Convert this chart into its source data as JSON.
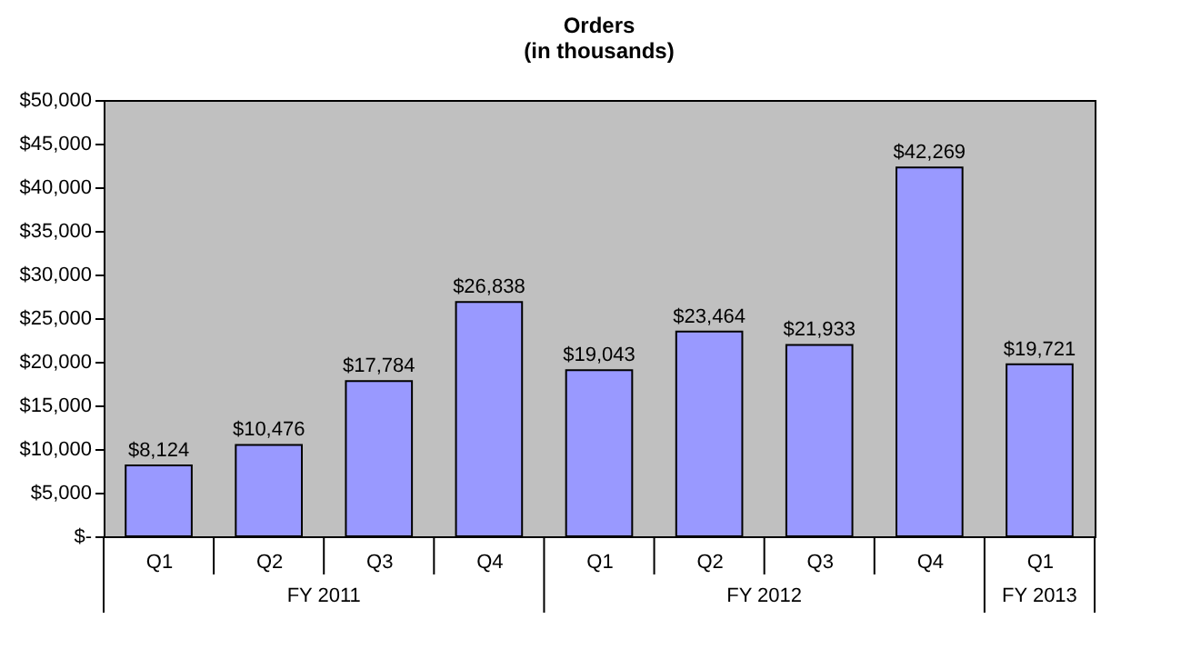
{
  "chart_data": {
    "type": "bar",
    "title": [
      "Orders",
      "(in thousands)"
    ],
    "categories": [
      "Q1",
      "Q2",
      "Q3",
      "Q4",
      "Q1",
      "Q2",
      "Q3",
      "Q4",
      "Q1"
    ],
    "values": [
      8124,
      10476,
      17784,
      26838,
      19043,
      23464,
      21933,
      42269,
      19721
    ],
    "value_labels": [
      "$8,124",
      "$10,476",
      "$17,784",
      "$26,838",
      "$19,043",
      "$23,464",
      "$21,933",
      "$42,269",
      "$19,721"
    ],
    "color": "#9999ff",
    "ylim": [
      0,
      50000
    ],
    "yticks": [
      {
        "value": 0,
        "label": "$-"
      },
      {
        "value": 5000,
        "label": "$5,000"
      },
      {
        "value": 10000,
        "label": "$10,000"
      },
      {
        "value": 15000,
        "label": "$15,000"
      },
      {
        "value": 20000,
        "label": "$20,000"
      },
      {
        "value": 25000,
        "label": "$25,000"
      },
      {
        "value": 30000,
        "label": "$30,000"
      },
      {
        "value": 35000,
        "label": "$35,000"
      },
      {
        "value": 40000,
        "label": "$40,000"
      },
      {
        "value": 45000,
        "label": "$45,000"
      },
      {
        "value": 50000,
        "label": "$50,000"
      }
    ],
    "annotations": [
      "FY 2011",
      "FY 2012",
      "FY 2013"
    ],
    "grid": false
  }
}
